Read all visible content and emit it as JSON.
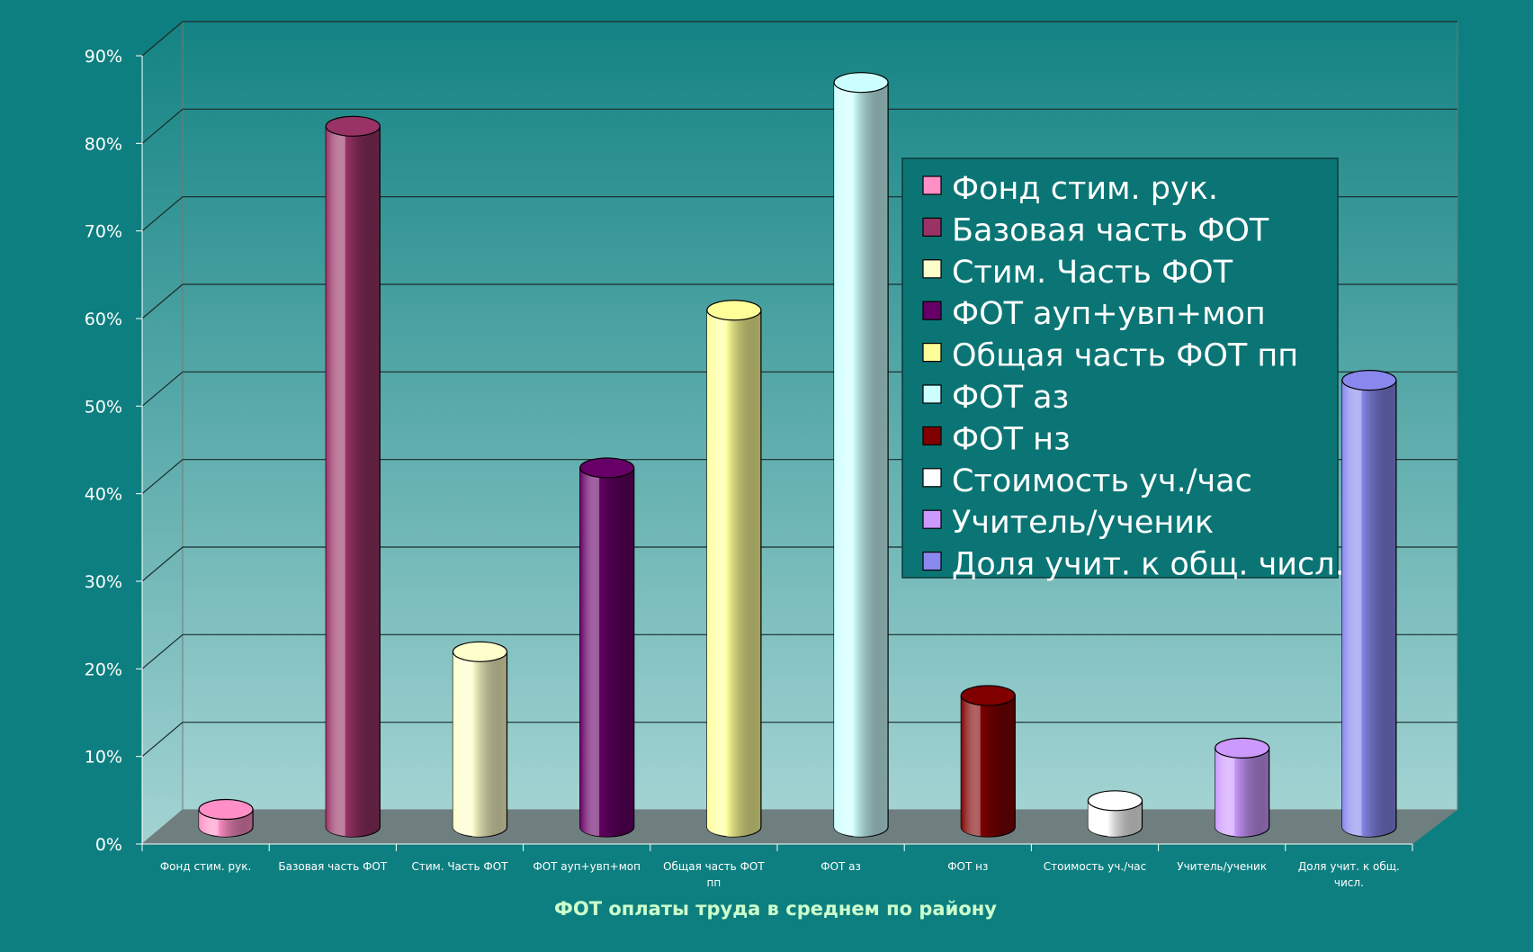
{
  "chart_data": {
    "type": "bar",
    "style": "3d-cylinder",
    "categories": [
      "Фонд стим. рук.",
      "Базовая часть ФОТ",
      "Стим. Часть ФОТ",
      "ФОТ аუп+увп+моп",
      "Общая часть ФОТ пп",
      "ФОТ аз",
      "ФОТ нз",
      "Стоимость уч./час",
      "Учитель/ученик",
      "Доля учит. к общ. числ."
    ],
    "category_labels_display": [
      [
        "Фонд стим. рук."
      ],
      [
        "Базовая часть ФОТ"
      ],
      [
        "Стим. Часть ФОТ"
      ],
      [
        "ФОТ ауп+увп+моп"
      ],
      [
        "Общая часть ФОТ",
        "пп"
      ],
      [
        "ФОТ аз"
      ],
      [
        "ФОТ нз"
      ],
      [
        "Стоимость уч./час"
      ],
      [
        "Учитель/ученик"
      ],
      [
        "Доля учит. к общ.",
        "числ."
      ]
    ],
    "values": [
      2,
      80,
      20,
      41,
      59,
      85,
      15,
      3,
      9,
      51
    ],
    "colors": [
      "#ff8fc6",
      "#993366",
      "#ffffcc",
      "#660066",
      "#ffff99",
      "#ccffff",
      "#800000",
      "#ffffff",
      "#cc99ff",
      "#8888ee"
    ],
    "legend": [
      "Фонд стим. рук.",
      "Базовая часть ФОТ",
      "Стим. Часть ФОТ",
      "ФОТ ауп+увп+моп",
      "Общая часть ФОТ пп",
      "ФОТ аз",
      "ФОТ нз",
      "Стоимость уч./час",
      "Учитель/ученик",
      "Доля учит. к общ. числ."
    ],
    "legend_placement": "right",
    "xlabel": "ФОТ оплаты труда в среднем по району",
    "ylabel": "",
    "ylim": [
      0,
      90
    ],
    "yticks": [
      "0%",
      "10%",
      "20%",
      "30%",
      "40%",
      "50%",
      "60%",
      "70%",
      "80%",
      "90%"
    ],
    "grid": true
  },
  "colors": {
    "background": "#0e7f80",
    "floor": "#6f7f7f",
    "plot_top": "#148383",
    "plot_bottom": "#a3d3d3",
    "gridline": "#1a2a2a",
    "legend_bg": "#0b7575"
  }
}
